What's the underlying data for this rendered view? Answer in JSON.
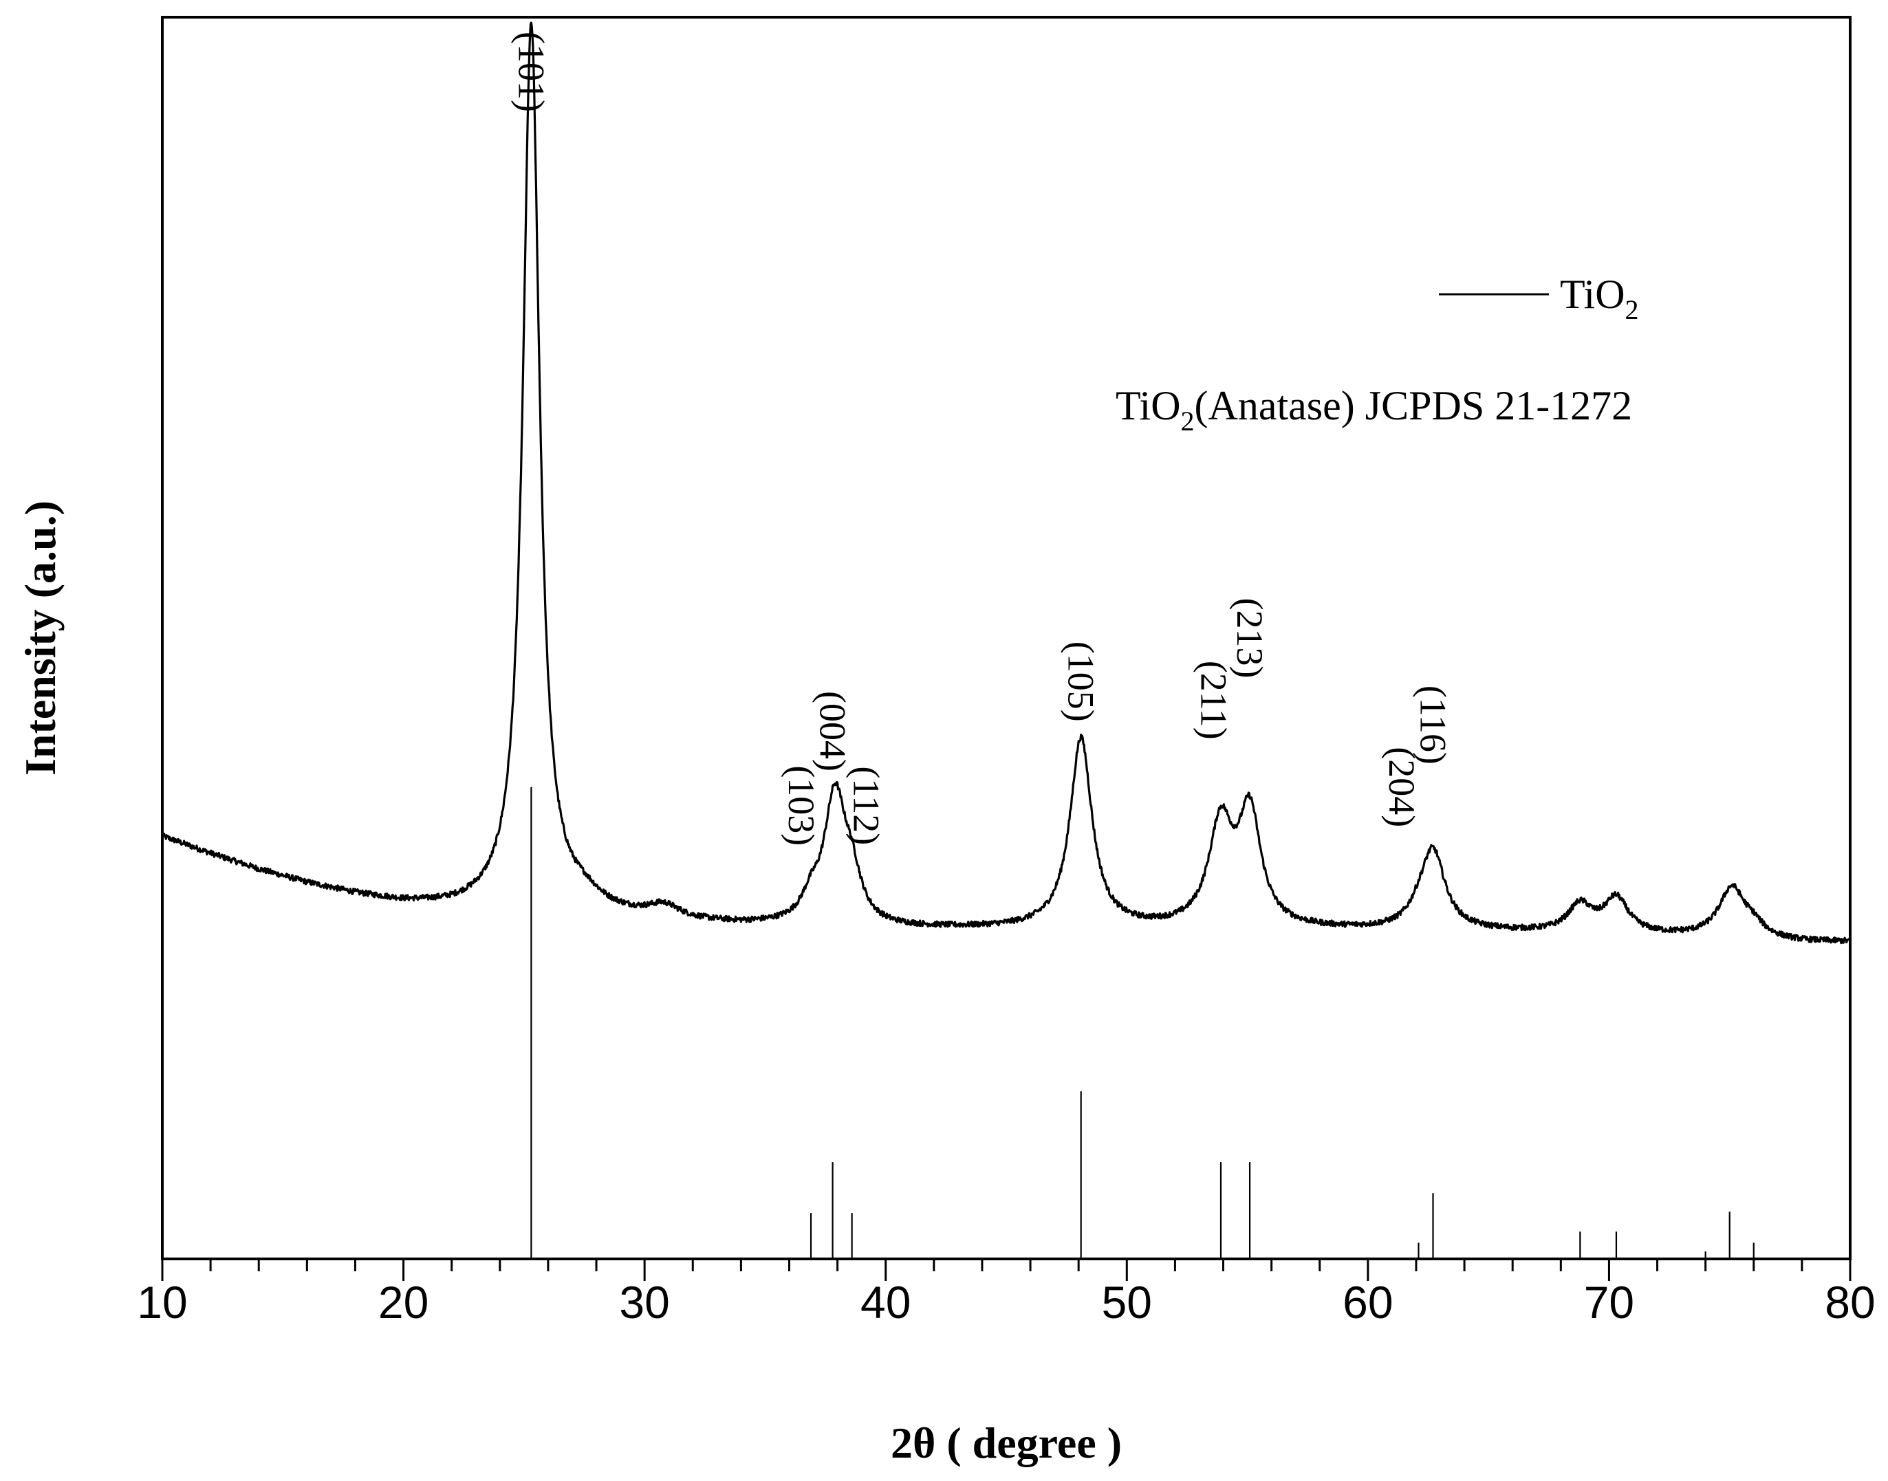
{
  "chart_data": {
    "type": "line",
    "xlabel": "2θ ( degree )",
    "ylabel": "Intensity (a.u.)",
    "xlim": [
      10,
      80
    ],
    "ylim": [
      0,
      100
    ],
    "x_ticks": [
      10,
      20,
      30,
      40,
      50,
      60,
      70,
      80
    ],
    "grid": false,
    "legend": {
      "placement": "top-right",
      "entries": [
        {
          "name": "TiO",
          "sub": "2",
          "color": "#000000",
          "style": "line"
        }
      ]
    },
    "annotation": {
      "pre": "TiO",
      "sub": "2",
      "post": "(Anatase) JCPDS 21-1272"
    },
    "series": [
      {
        "name": "TiO2",
        "color": "#000000",
        "baseline": [
          [
            10,
            34.0
          ],
          [
            12,
            32.6
          ],
          [
            14,
            31.3
          ],
          [
            16,
            30.2
          ],
          [
            18,
            29.3
          ],
          [
            20,
            28.6
          ],
          [
            22,
            28.2
          ],
          [
            24,
            28.1
          ],
          [
            26,
            28.0
          ],
          [
            28,
            27.7
          ],
          [
            30,
            27.3
          ],
          [
            32,
            27.0
          ],
          [
            34,
            26.8
          ],
          [
            36,
            26.7
          ],
          [
            40,
            26.5
          ],
          [
            45,
            26.5
          ],
          [
            50,
            26.5
          ],
          [
            55,
            26.5
          ],
          [
            60,
            26.4
          ],
          [
            65,
            26.3
          ],
          [
            70,
            26.1
          ],
          [
            75,
            25.8
          ],
          [
            78,
            25.5
          ],
          [
            80,
            25.5
          ]
        ],
        "peaks": [
          {
            "x": 25.3,
            "height": 71.3,
            "width": 0.42
          },
          {
            "x": 27.5,
            "height": 0.8,
            "width": 0.8
          },
          {
            "x": 30.8,
            "height": 1.0,
            "width": 0.8
          },
          {
            "x": 36.9,
            "height": 1.6,
            "width": 0.45
          },
          {
            "x": 37.9,
            "height": 10.4,
            "width": 0.55
          },
          {
            "x": 38.6,
            "height": 3.0,
            "width": 0.45
          },
          {
            "x": 48.1,
            "height": 15.3,
            "width": 0.55
          },
          {
            "x": 53.9,
            "height": 8.2,
            "width": 0.6
          },
          {
            "x": 55.1,
            "height": 9.0,
            "width": 0.55
          },
          {
            "x": 62.1,
            "height": 0.8,
            "width": 0.5
          },
          {
            "x": 62.7,
            "height": 6.3,
            "width": 0.6
          },
          {
            "x": 68.8,
            "height": 2.2,
            "width": 0.6
          },
          {
            "x": 70.3,
            "height": 2.8,
            "width": 0.6
          },
          {
            "x": 75.1,
            "height": 4.0,
            "width": 0.65
          },
          {
            "x": 76.0,
            "height": 0.8,
            "width": 0.5
          }
        ]
      },
      {
        "name": "TiO2 (Anatase) JCPDS 21-1272",
        "type": "stick",
        "color": "#000000",
        "sticks": [
          {
            "x": 25.3,
            "height": 38.0
          },
          {
            "x": 36.9,
            "height": 3.7
          },
          {
            "x": 37.8,
            "height": 7.8
          },
          {
            "x": 38.6,
            "height": 3.7
          },
          {
            "x": 48.1,
            "height": 13.5
          },
          {
            "x": 53.9,
            "height": 7.8
          },
          {
            "x": 55.1,
            "height": 7.8
          },
          {
            "x": 62.1,
            "height": 1.3
          },
          {
            "x": 62.7,
            "height": 5.3
          },
          {
            "x": 68.8,
            "height": 2.2
          },
          {
            "x": 70.3,
            "height": 2.2
          },
          {
            "x": 74.0,
            "height": 0.6
          },
          {
            "x": 75.0,
            "height": 3.8
          },
          {
            "x": 76.0,
            "height": 1.3
          }
        ]
      }
    ],
    "peak_labels": [
      {
        "text": "(101)",
        "x": 25.3,
        "y": 95.6
      },
      {
        "text": "(103)",
        "x": 36.5,
        "y": 36.5
      },
      {
        "text": "(004)",
        "x": 37.8,
        "y": 42.5
      },
      {
        "text": "(112)",
        "x": 39.2,
        "y": 36.5
      },
      {
        "text": "(105)",
        "x": 48.1,
        "y": 46.5
      },
      {
        "text": "(211)",
        "x": 53.6,
        "y": 45.0
      },
      {
        "text": "(213)",
        "x": 55.1,
        "y": 50.0
      },
      {
        "text": "(204)",
        "x": 61.4,
        "y": 38.0
      },
      {
        "text": "(116)",
        "x": 62.7,
        "y": 43.0
      }
    ]
  }
}
